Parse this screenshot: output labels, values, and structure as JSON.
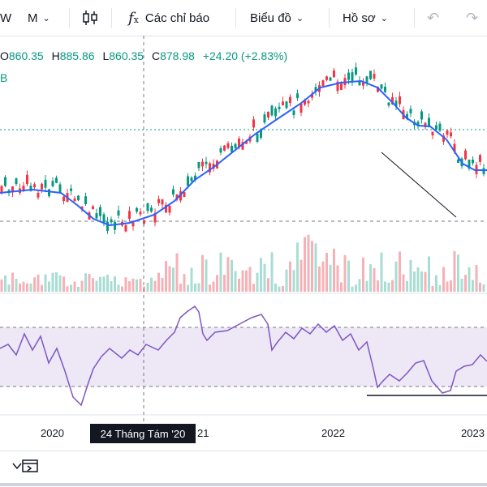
{
  "toolbar": {
    "interval": "W",
    "chart_type": "M",
    "indicators_label": "Các chỉ báo",
    "chart_label": "Biểu đồ",
    "profile_label": "Hồ sơ"
  },
  "legend": {
    "o_key": "O",
    "o_val": "860.35",
    "h_key": "H",
    "h_val": "885.86",
    "l_key": "L",
    "l_val": "860.35",
    "c_key": "C",
    "c_val": "878.98",
    "change": "+24.20 (+2.83%)",
    "second_line": "B"
  },
  "xaxis": {
    "labels": [
      "2020",
      "21",
      "2022",
      "2023"
    ],
    "crosshair_label": "24 Tháng Tám '20"
  },
  "colors": {
    "up": "#089981",
    "down": "#f23645",
    "ma": "#2962ff",
    "rsi": "#7e57c2",
    "rsi_band": "#ede7f6"
  },
  "chart_data": {
    "type": "candlestick",
    "ma_line": [
      [
        0,
        238
      ],
      [
        40,
        234
      ],
      [
        75,
        238
      ],
      [
        95,
        253
      ],
      [
        115,
        270
      ],
      [
        135,
        278
      ],
      [
        160,
        275
      ],
      [
        190,
        265
      ],
      [
        215,
        248
      ],
      [
        240,
        222
      ],
      [
        265,
        205
      ],
      [
        290,
        185
      ],
      [
        315,
        165
      ],
      [
        340,
        148
      ],
      [
        370,
        128
      ],
      [
        395,
        108
      ],
      [
        420,
        102
      ],
      [
        445,
        100
      ],
      [
        465,
        108
      ],
      [
        485,
        128
      ],
      [
        500,
        145
      ],
      [
        515,
        155
      ],
      [
        530,
        156
      ],
      [
        550,
        172
      ],
      [
        570,
        202
      ],
      [
        585,
        210
      ],
      [
        600,
        210
      ]
    ],
    "rsi_line": [
      [
        0,
        430
      ],
      [
        10,
        425
      ],
      [
        20,
        438
      ],
      [
        30,
        412
      ],
      [
        40,
        432
      ],
      [
        50,
        415
      ],
      [
        60,
        448
      ],
      [
        70,
        430
      ],
      [
        80,
        458
      ],
      [
        90,
        490
      ],
      [
        100,
        500
      ],
      [
        108,
        475
      ],
      [
        115,
        455
      ],
      [
        125,
        440
      ],
      [
        135,
        430
      ],
      [
        150,
        442
      ],
      [
        160,
        432
      ],
      [
        170,
        438
      ],
      [
        180,
        425
      ],
      [
        195,
        432
      ],
      [
        205,
        420
      ],
      [
        215,
        410
      ],
      [
        222,
        392
      ],
      [
        230,
        385
      ],
      [
        240,
        378
      ],
      [
        245,
        385
      ],
      [
        250,
        412
      ],
      [
        255,
        420
      ],
      [
        265,
        410
      ],
      [
        280,
        408
      ],
      [
        295,
        400
      ],
      [
        310,
        392
      ],
      [
        322,
        388
      ],
      [
        330,
        400
      ],
      [
        335,
        432
      ],
      [
        342,
        422
      ],
      [
        352,
        410
      ],
      [
        362,
        418
      ],
      [
        372,
        405
      ],
      [
        382,
        412
      ],
      [
        392,
        400
      ],
      [
        402,
        410
      ],
      [
        412,
        402
      ],
      [
        422,
        420
      ],
      [
        432,
        412
      ],
      [
        442,
        432
      ],
      [
        452,
        422
      ],
      [
        460,
        455
      ],
      [
        465,
        478
      ],
      [
        472,
        470
      ],
      [
        480,
        462
      ],
      [
        492,
        470
      ],
      [
        502,
        460
      ],
      [
        512,
        448
      ],
      [
        522,
        445
      ],
      [
        532,
        470
      ],
      [
        545,
        485
      ],
      [
        555,
        482
      ],
      [
        562,
        458
      ],
      [
        572,
        452
      ],
      [
        582,
        450
      ],
      [
        592,
        438
      ],
      [
        600,
        446
      ]
    ]
  }
}
